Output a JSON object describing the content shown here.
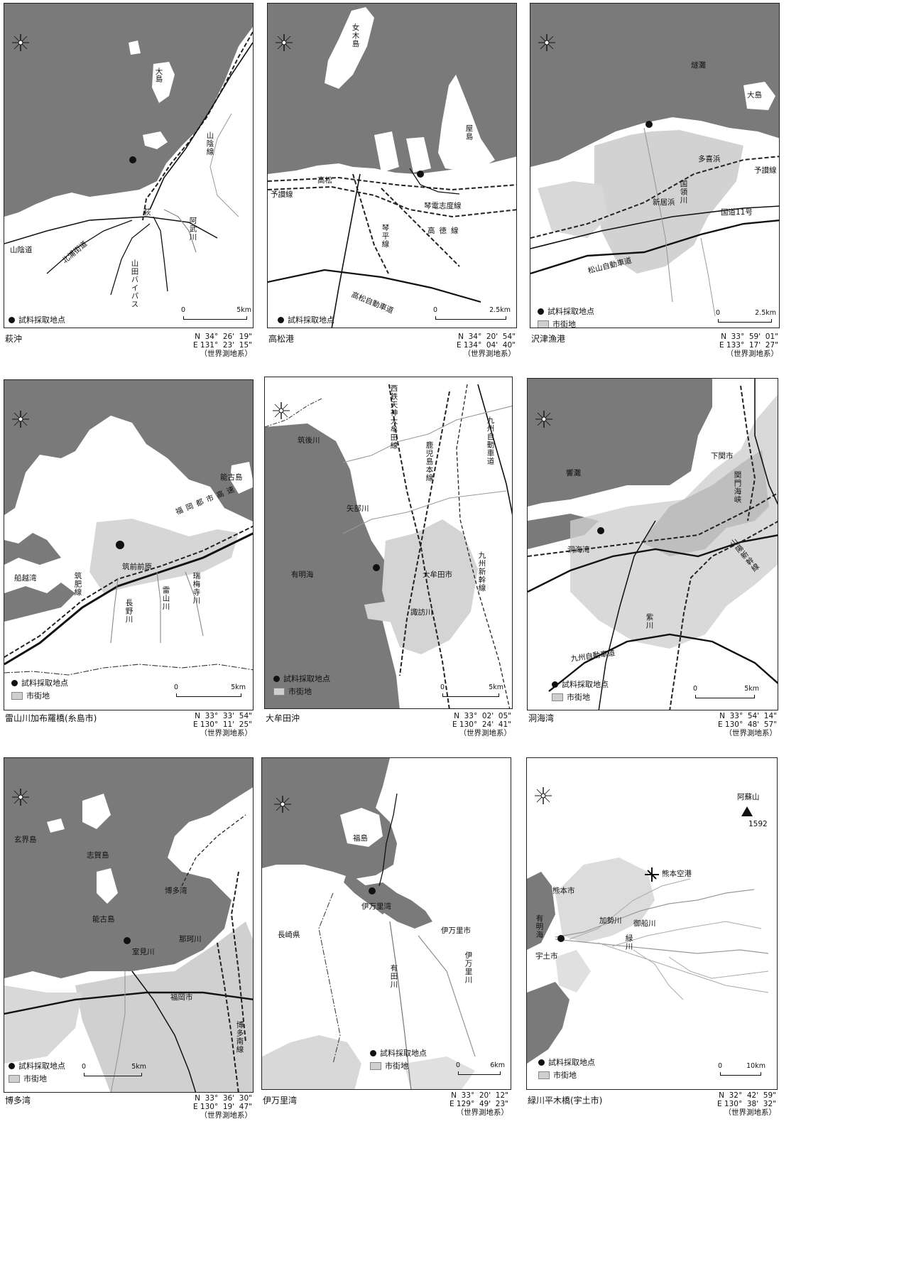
{
  "legend": {
    "sample_point": "試料採取地点",
    "urban": "市街地"
  },
  "panels": [
    {
      "caption": "萩沖",
      "coords": "N  34°  26'  19\"\nE 131°  23'  15\"\n（世界測地系）",
      "scale_end": "5km",
      "labels": [
        "大島",
        "山陰線",
        "萩",
        "阿武川",
        "山陰道",
        "北浦街道",
        "山田バイパス"
      ]
    },
    {
      "caption": "高松港",
      "coords": "N  34°  20'  54\"\nE 134°  04'  40\"\n（世界測地系）",
      "scale_end": "2.5km",
      "labels": [
        "女木島",
        "屋島",
        "高松",
        "予讃線",
        "琴電志度線",
        "高徳線",
        "琴平線",
        "高松自動車道"
      ]
    },
    {
      "caption": "沢津漁港",
      "coords": "N  33°  59'  01\"\nE 133°  17'  27\"\n（世界測地系）",
      "scale_end": "2.5km",
      "labels": [
        "燧灘",
        "大島",
        "多喜浜",
        "予讃線",
        "国領川",
        "新居浜",
        "国道11号",
        "松山自動車道"
      ]
    },
    {
      "caption": "雷山川加布羅橋(糸島市)",
      "coords": "N  33°  33'  54\"\nE 130°  11'  25\"\n（世界測地系）",
      "scale_end": "5km",
      "labels": [
        "能古島",
        "船越湾",
        "筑肥線",
        "筑前前原",
        "福岡都市高速",
        "雷山川",
        "長野川",
        "瑞梅寺川"
      ]
    },
    {
      "caption": "大牟田沖",
      "coords": "N  33°  02'  05\"\nE 130°  24'  41\"\n（世界測地系）",
      "scale_end": "5km",
      "labels": [
        "西鉄天神大牟田線",
        "鹿児島本線",
        "九州自動車道",
        "筑後川",
        "矢部川",
        "有明海",
        "大牟田市",
        "九州新幹線",
        "諏訪川"
      ]
    },
    {
      "caption": "洞海湾",
      "coords": "N  33°  54'  14\"\nE 130°  48'  57\"\n（世界測地系）",
      "scale_end": "5km",
      "labels": [
        "響灘",
        "下関市",
        "関門海峡",
        "洞海湾",
        "山陽新幹線",
        "紫川",
        "九州自動車道"
      ]
    },
    {
      "caption": "博多湾",
      "coords": "N  33°  36'  30\"\nE 130°  19'  47\"\n（世界測地系）",
      "scale_end": "5km",
      "labels": [
        "玄界島",
        "志賀島",
        "博多湾",
        "能古島",
        "室見川",
        "那珂川",
        "福岡市",
        "博多南線"
      ]
    },
    {
      "caption": "伊万里湾",
      "coords": "N  33°  20'  12\"\nE 129°  49'  23\"\n（世界測地系）",
      "scale_end": "6km",
      "labels": [
        "福島",
        "伊万里湾",
        "長崎県",
        "伊万里市",
        "有田川",
        "伊万里川"
      ]
    },
    {
      "caption": "緑川平木橋(宇土市)",
      "coords": "N  32°  42'  59\"\nE 130°  38'  32\"\n（世界測地系）",
      "scale_end": "10km",
      "labels": [
        "阿蘇山",
        "1592",
        "熊本空港",
        "熊本市",
        "有明海",
        "加勢川",
        "御船川",
        "緑川",
        "宇土市"
      ]
    }
  ]
}
